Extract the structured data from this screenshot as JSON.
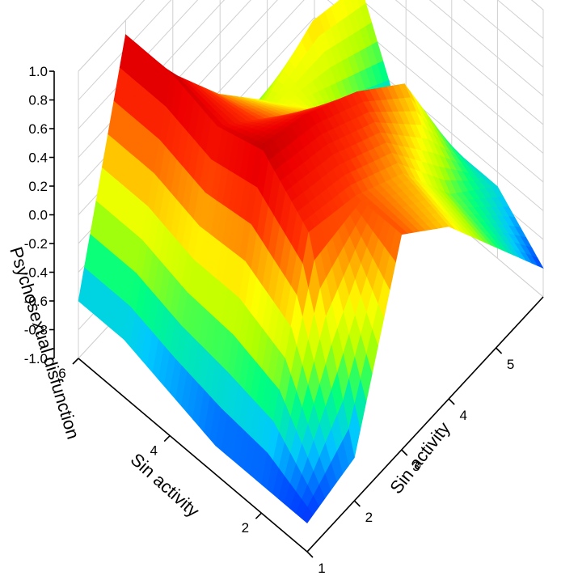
{
  "chart_data": {
    "type": "surface3d",
    "title": "",
    "xlabel": "Sin activity",
    "ylabel": "Sin activity",
    "zlabel": "Psychosexual disfunction",
    "x_ticks": [
      "2",
      "4",
      "6"
    ],
    "y_ticks": [
      "1",
      "2",
      "3",
      "4",
      "5"
    ],
    "z_ticks": [
      "-1.0",
      "-0.8",
      "-0.6",
      "-0.4",
      "-0.2",
      "0.0",
      "0.2",
      "0.4",
      "0.6",
      "0.8",
      "1.0"
    ],
    "xlim": [
      1,
      6
    ],
    "ylim": [
      1,
      6
    ],
    "zlim": [
      -1.0,
      1.0
    ],
    "colormap": [
      "#5a00c8",
      "#0040ff",
      "#00c8ff",
      "#00ff80",
      "#b0ff00",
      "#ffff00",
      "#ffa000",
      "#ff3000",
      "#ee0000",
      "#a00000"
    ],
    "x": [
      1,
      2,
      3,
      4,
      5,
      6
    ],
    "y": [
      1,
      2,
      3,
      4,
      5,
      6
    ],
    "z": [
      [
        -0.8,
        -0.8,
        -0.8,
        -0.7,
        -0.6,
        -0.6
      ],
      [
        -0.7,
        0.6,
        0.9,
        0.8,
        0.9,
        0.9
      ],
      [
        0.5,
        0.5,
        0.8,
        0.5,
        0.4,
        -0.1
      ],
      [
        0.2,
        0.3,
        0.6,
        0.2,
        0.0,
        -0.5
      ],
      [
        -0.3,
        -0.2,
        0.3,
        -0.4,
        0.2,
        -0.7
      ],
      [
        -0.8,
        -0.5,
        -0.5,
        -0.7,
        0.1,
        -0.6
      ]
    ]
  }
}
